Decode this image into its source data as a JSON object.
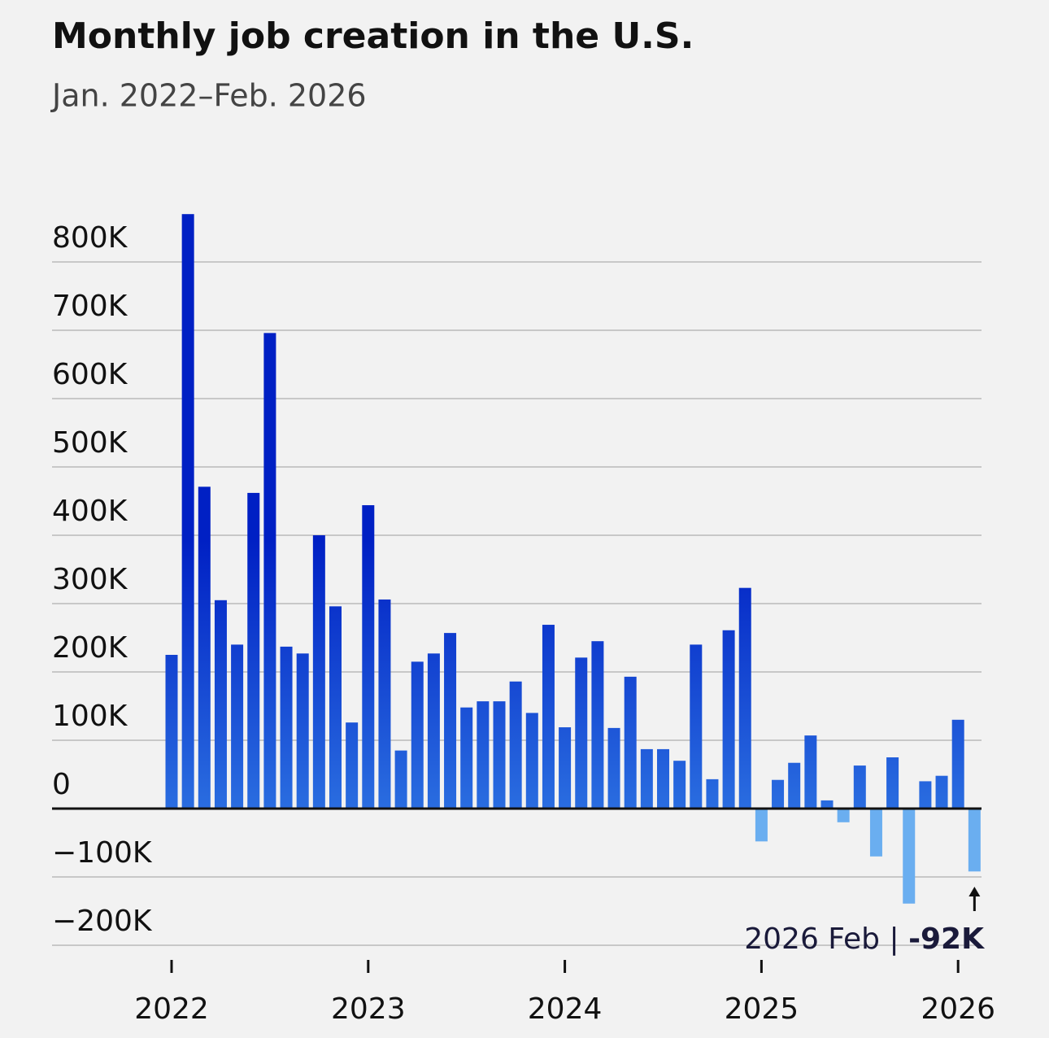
{
  "chart_data": {
    "type": "bar",
    "title": "Monthly job creation in the U.S.",
    "subtitle": "Jan. 2022–Feb. 2026",
    "categories": [
      "2022",
      null,
      null,
      null,
      null,
      null,
      null,
      null,
      null,
      null,
      null,
      null,
      "2023",
      null,
      null,
      null,
      null,
      null,
      null,
      null,
      null,
      null,
      null,
      null,
      "2024",
      null,
      null,
      null,
      null,
      null,
      null,
      null,
      null,
      null,
      null,
      null,
      "2025",
      null,
      null,
      null,
      null,
      null,
      null,
      null,
      null,
      null,
      null,
      null,
      "2026",
      null
    ],
    "values": [
      225000,
      870000,
      471000,
      305000,
      240000,
      462000,
      696000,
      237000,
      227000,
      400000,
      296000,
      126000,
      444000,
      306000,
      85000,
      215000,
      227000,
      257000,
      148000,
      157000,
      157000,
      186000,
      140000,
      269000,
      119000,
      221000,
      245000,
      118000,
      193000,
      87000,
      87000,
      70000,
      240000,
      43000,
      261000,
      323000,
      -48000,
      42000,
      67000,
      107000,
      12000,
      -20000,
      63000,
      -70000,
      75000,
      -139000,
      40000,
      48000,
      130000,
      -92000
    ],
    "value_labels": [
      null,
      null,
      null,
      null,
      null,
      null,
      null,
      null,
      null,
      null,
      null,
      null,
      null,
      null,
      null,
      null,
      null,
      null,
      null,
      null,
      null,
      null,
      null,
      null,
      null,
      null,
      null,
      null,
      null,
      null,
      null,
      null,
      null,
      null,
      null,
      null,
      null,
      null,
      null,
      null,
      null,
      null,
      null,
      null,
      null,
      null,
      null,
      null,
      null,
      "-92K"
    ],
    "annotation": "2026 Feb |",
    "positive_colors": [
      "#2a6de0",
      "#0020c4"
    ],
    "negative_color": "#6aaef0",
    "ylim": [
      -200000,
      880000
    ],
    "yticks": [
      {
        "value": -200000,
        "label": "−200K"
      },
      {
        "value": -100000,
        "label": "−100K"
      },
      0,
      {
        "value": 100000,
        "label": "100K"
      },
      {
        "value": 200000,
        "label": "200K"
      },
      {
        "value": 300000,
        "label": "300K"
      },
      {
        "value": 400000,
        "label": "400K"
      },
      {
        "value": 500000,
        "label": "500K"
      },
      {
        "value": 600000,
        "label": "600K"
      },
      {
        "value": 700000,
        "label": "700K"
      },
      {
        "value": 800000,
        "label": "800K"
      }
    ],
    "grid": true
  }
}
